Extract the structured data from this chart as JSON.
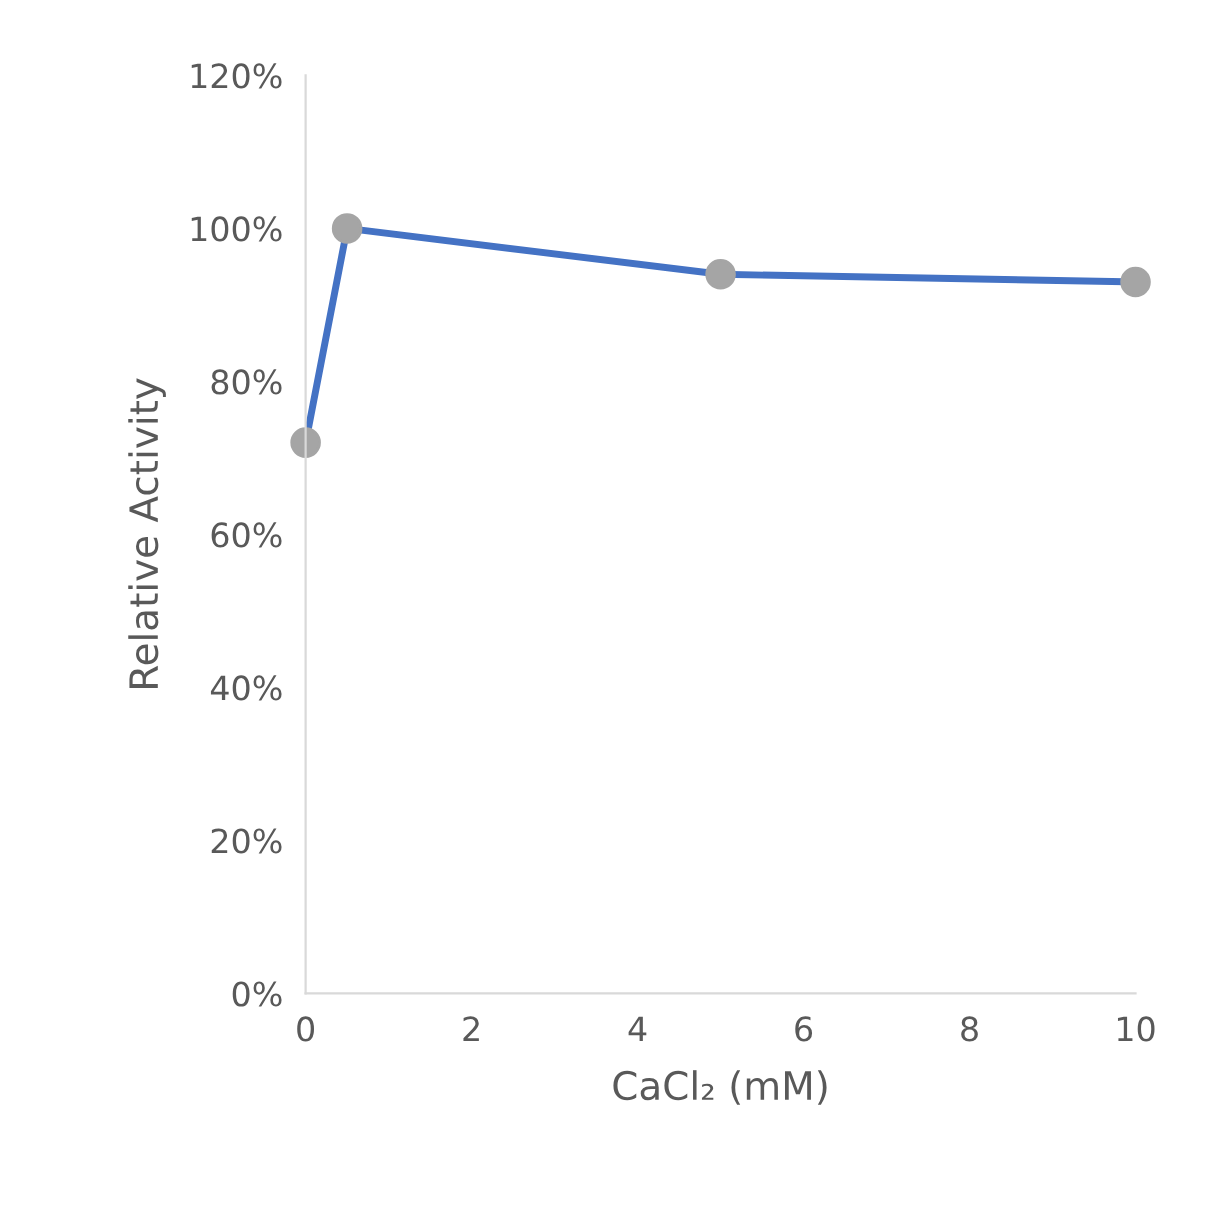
{
  "chart_data": {
    "type": "line",
    "xlabel": "CaCl₂ (mM)",
    "ylabel": "Relative Activity",
    "x": [
      0,
      0.5,
      5,
      10
    ],
    "series": [
      {
        "color": "#4472c4",
        "values": [
          72,
          100,
          94,
          93
        ]
      }
    ],
    "marker": "circle",
    "line_style": "solid",
    "grid": false,
    "legend": false,
    "xlim": [
      0,
      10
    ],
    "xticks": [
      0,
      2,
      4,
      6,
      8,
      10
    ],
    "ylim": [
      0,
      120
    ],
    "yticks": [
      {
        "value": 0,
        "label": "0%"
      },
      {
        "value": 20,
        "label": "20%"
      },
      {
        "value": 40,
        "label": "40%"
      },
      {
        "value": 60,
        "label": "60%"
      },
      {
        "value": 80,
        "label": "80%"
      },
      {
        "value": 100,
        "label": "100%"
      },
      {
        "value": 120,
        "label": "120%"
      }
    ]
  }
}
